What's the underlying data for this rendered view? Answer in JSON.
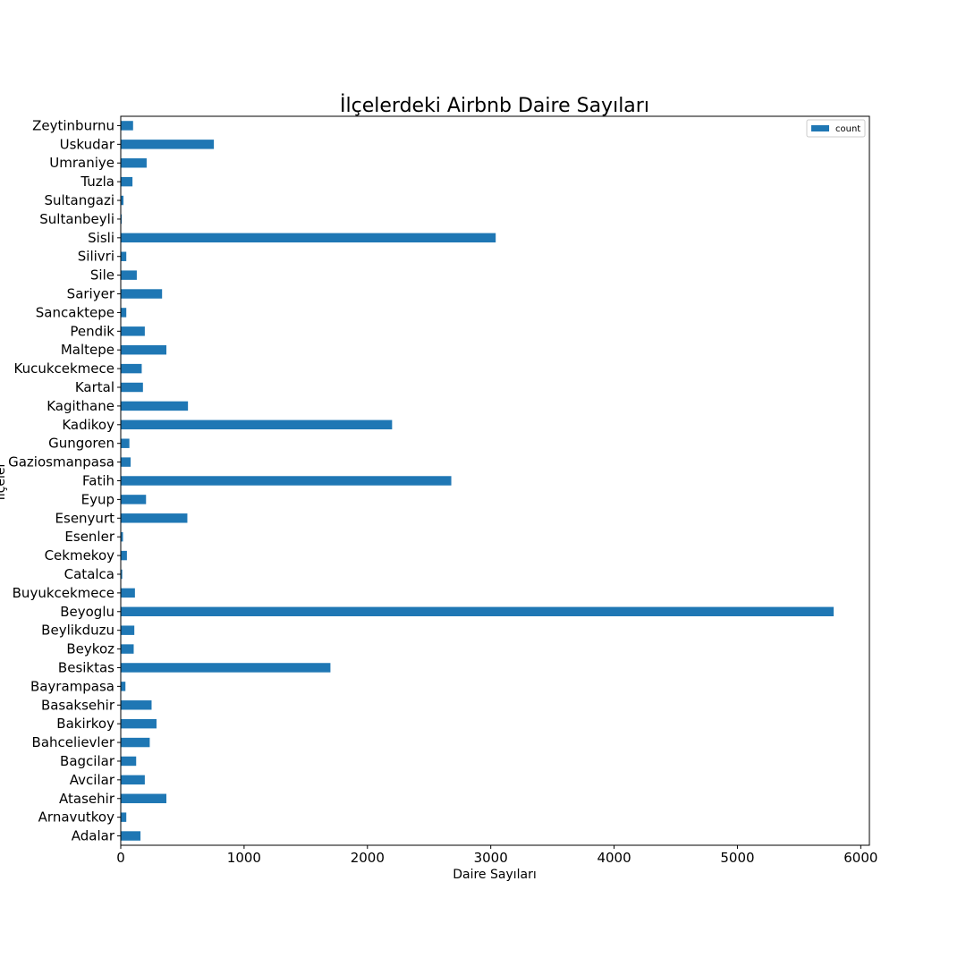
{
  "chart_data": {
    "type": "bar",
    "orientation": "horizontal",
    "title": "İlçelerdeki Airbnb Daire Sayıları",
    "xlabel": "Daire Sayıları",
    "ylabel": "İlçeler",
    "xlim": [
      0,
      6070
    ],
    "xticks": [
      0,
      1000,
      2000,
      3000,
      4000,
      5000,
      6000
    ],
    "grid": false,
    "legend_position": "top-right",
    "bar_color": "#1f77b4",
    "categories": [
      "Adalar",
      "Arnavutkoy",
      "Atasehir",
      "Avcilar",
      "Bagcilar",
      "Bahcelievler",
      "Bakirkoy",
      "Basaksehir",
      "Bayrampasa",
      "Besiktas",
      "Beykoz",
      "Beylikduzu",
      "Beyoglu",
      "Buyukcekmece",
      "Catalca",
      "Cekmekoy",
      "Esenler",
      "Esenyurt",
      "Eyup",
      "Fatih",
      "Gaziosmanpasa",
      "Gungoren",
      "Kadikoy",
      "Kagithane",
      "Kartal",
      "Kucukcekmece",
      "Maltepe",
      "Pendik",
      "Sancaktepe",
      "Sariyer",
      "Sile",
      "Silivri",
      "Sisli",
      "Sultanbeyli",
      "Sultangazi",
      "Tuzla",
      "Umraniye",
      "Uskudar",
      "Zeytinburnu"
    ],
    "series": [
      {
        "name": "count",
        "values": [
          160,
          45,
          370,
          195,
          125,
          235,
          290,
          250,
          38,
          1700,
          105,
          110,
          5780,
          115,
          12,
          50,
          18,
          540,
          205,
          2680,
          80,
          70,
          2200,
          545,
          180,
          170,
          370,
          195,
          45,
          335,
          130,
          45,
          3040,
          8,
          22,
          95,
          210,
          755,
          100
        ]
      }
    ]
  }
}
